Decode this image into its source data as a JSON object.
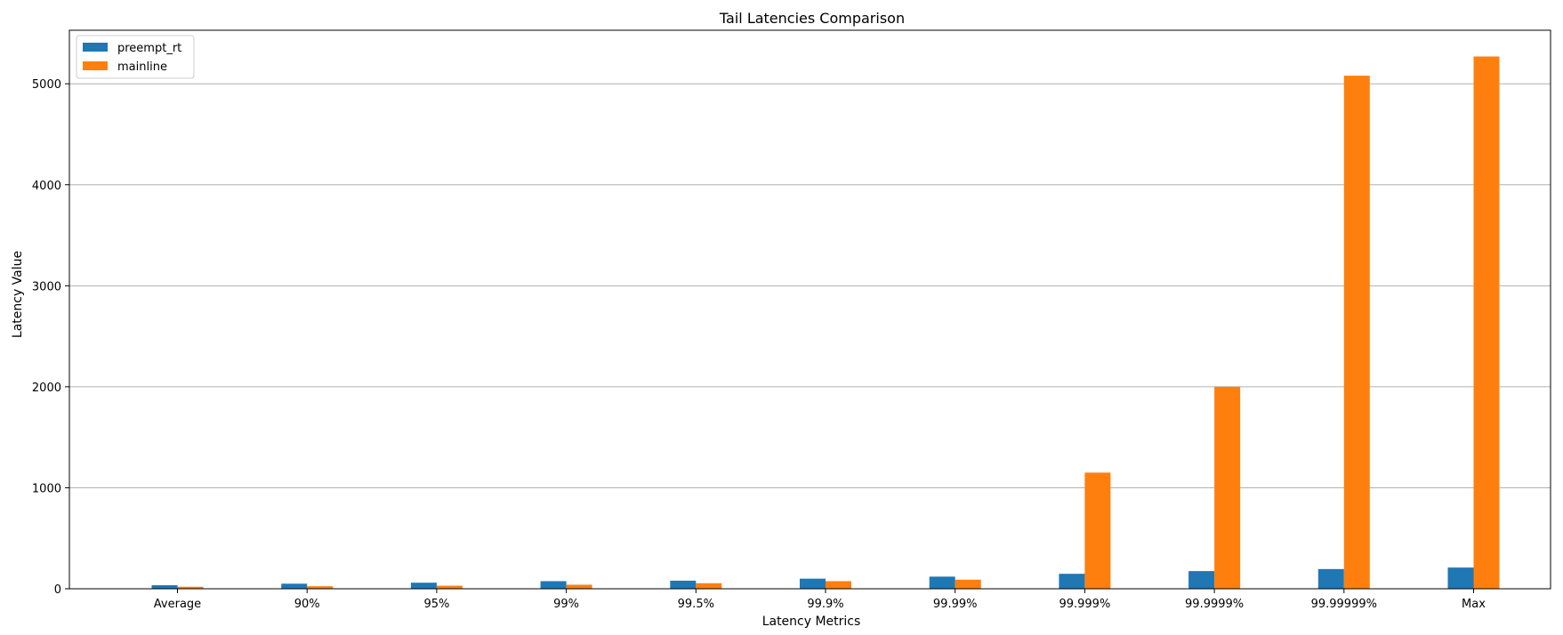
{
  "chart_data": {
    "type": "bar",
    "title": "Tail Latencies Comparison",
    "xlabel": "Latency Metrics",
    "ylabel": "Latency Value",
    "categories": [
      "Average",
      "90%",
      "95%",
      "99%",
      "99.5%",
      "99.9%",
      "99.99%",
      "99.999%",
      "99.9999%",
      "99.99999%",
      "Max"
    ],
    "series": [
      {
        "name": "preempt_rt",
        "color": "#1f77b4",
        "values": [
          35,
          50,
          60,
          75,
          80,
          100,
          120,
          148,
          175,
          195,
          210
        ]
      },
      {
        "name": "mainline",
        "color": "#ff7f0e",
        "values": [
          20,
          25,
          30,
          40,
          55,
          75,
          90,
          1150,
          2000,
          5080,
          5270
        ]
      }
    ],
    "yticks": [
      0,
      1000,
      2000,
      3000,
      4000,
      5000
    ],
    "ylim": [
      0,
      5530
    ],
    "grid": "y-major",
    "legend_position": "top-left"
  }
}
